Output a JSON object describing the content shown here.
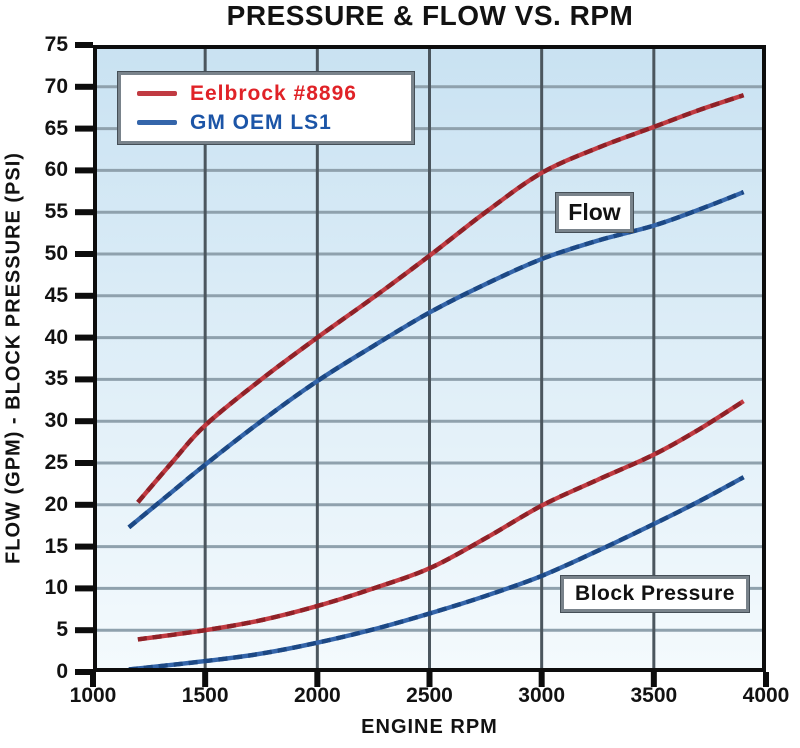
{
  "title": "PRESSURE & FLOW VS. RPM",
  "legend": {
    "items": [
      {
        "label": "Eelbrock #8896",
        "color": "#e02227",
        "line_color": "#c13b42"
      },
      {
        "label": "GM OEM LS1",
        "color": "#1c55a7",
        "line_color": "#3465aa"
      }
    ]
  },
  "annotations": {
    "flow_label": "Flow",
    "block_pressure_label": "Block Pressure"
  },
  "style": {
    "plot_bg_top": "#c9e2f2",
    "plot_bg_bottom": "#f4fafd",
    "grid_h_color": "#8fa1ad",
    "grid_v_color": "#4b565e",
    "frame_color": "#0d0d0d",
    "tick_color": "#0d0d0d"
  },
  "chart_data": {
    "type": "line",
    "title": "PRESSURE & FLOW VS. RPM",
    "xlabel": "ENGINE RPM",
    "ylabel": "FLOW (GPM) - BLOCK PRESSURE (PSI)",
    "xlim": [
      1000,
      4000
    ],
    "ylim": [
      0,
      75
    ],
    "x_ticks": [
      1000,
      1500,
      2000,
      2500,
      3000,
      3500,
      4000
    ],
    "y_ticks": [
      0,
      5,
      10,
      15,
      20,
      25,
      30,
      35,
      40,
      45,
      50,
      55,
      60,
      65,
      70,
      75
    ],
    "grid": true,
    "legend_position": "top-left",
    "series": [
      {
        "name": "Eelbrock #8896 - Flow",
        "group": "Flow",
        "color": "#c13b42",
        "color_dark": "#8f2127",
        "x": [
          1200,
          1350,
          1500,
          1750,
          2000,
          2250,
          2500,
          2750,
          3000,
          3250,
          3500,
          3700,
          3900
        ],
        "values": [
          20.3,
          25.0,
          29.5,
          35.0,
          40.0,
          44.8,
          49.8,
          55.0,
          59.7,
          62.7,
          65.2,
          67.2,
          69.0
        ]
      },
      {
        "name": "GM OEM LS1 - Flow",
        "group": "Flow",
        "color": "#3465aa",
        "color_dark": "#1c4884",
        "x": [
          1160,
          1350,
          1500,
          1750,
          2000,
          2250,
          2500,
          2750,
          3000,
          3250,
          3500,
          3700,
          3900
        ],
        "values": [
          17.3,
          21.5,
          24.8,
          30.0,
          34.8,
          39.0,
          43.0,
          46.4,
          49.4,
          51.6,
          53.4,
          55.3,
          57.4
        ]
      },
      {
        "name": "Eelbrock #8896 - Block Pressure",
        "group": "Block Pressure",
        "color": "#c13b42",
        "color_dark": "#8f2127",
        "x": [
          1200,
          1500,
          1750,
          2000,
          2250,
          2500,
          2750,
          3000,
          3250,
          3500,
          3700,
          3900
        ],
        "values": [
          3.9,
          5.0,
          6.2,
          7.9,
          10.0,
          12.4,
          16.0,
          19.9,
          23.0,
          26.0,
          29.0,
          32.4
        ]
      },
      {
        "name": "GM OEM LS1 - Block Pressure",
        "group": "Block Pressure",
        "color": "#3465aa",
        "color_dark": "#1c4884",
        "x": [
          1160,
          1500,
          1750,
          2000,
          2250,
          2500,
          2750,
          3000,
          3250,
          3500,
          3700,
          3900
        ],
        "values": [
          0.3,
          1.3,
          2.2,
          3.5,
          5.1,
          7.0,
          9.1,
          11.5,
          14.5,
          17.7,
          20.4,
          23.3
        ]
      }
    ]
  }
}
